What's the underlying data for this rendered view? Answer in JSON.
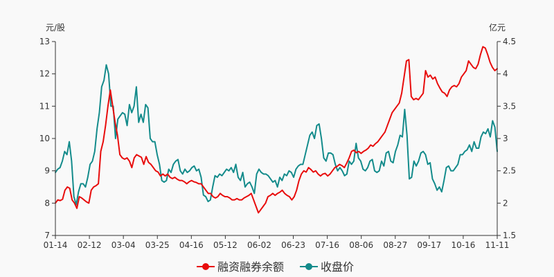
{
  "chart_data": {
    "type": "line",
    "left_unit": "元/股",
    "right_unit": "亿元",
    "x_tick_labels": [
      "01-14",
      "02-12",
      "03-04",
      "03-25",
      "04-16",
      "05-12",
      "06-02",
      "06-23",
      "07-16",
      "08-06",
      "08-27",
      "09-17",
      "10-16",
      "11-11"
    ],
    "y_left": {
      "min": 7,
      "max": 13,
      "ticks": [
        "7",
        "8",
        "9",
        "10",
        "11",
        "12",
        "13"
      ]
    },
    "y_right": {
      "min": 1.5,
      "max": 4.5,
      "ticks": [
        "1.5",
        "2",
        "2.5",
        "3",
        "3.5",
        "4",
        "4.5"
      ]
    },
    "grid": false,
    "legend_position": "bottom-center",
    "series": [
      {
        "name": "融资融券余额",
        "axis": "right",
        "color": "#e80c0c",
        "values": [
          2.0,
          2.05,
          2.04,
          2.06,
          2.2,
          2.25,
          2.23,
          2.05,
          2.0,
          1.92,
          2.1,
          2.08,
          2.05,
          2.02,
          2.0,
          2.2,
          2.25,
          2.27,
          2.3,
          2.8,
          2.95,
          3.2,
          3.5,
          3.75,
          3.5,
          3.25,
          3.05,
          2.75,
          2.7,
          2.68,
          2.7,
          2.65,
          2.55,
          2.7,
          2.75,
          2.73,
          2.71,
          2.6,
          2.72,
          2.63,
          2.6,
          2.55,
          2.5,
          2.48,
          2.42,
          2.45,
          2.42,
          2.45,
          2.4,
          2.38,
          2.4,
          2.37,
          2.35,
          2.35,
          2.33,
          2.3,
          2.33,
          2.35,
          2.33,
          2.32,
          2.3,
          2.3,
          2.25,
          2.2,
          2.15,
          2.15,
          2.1,
          2.08,
          2.1,
          2.15,
          2.12,
          2.1,
          2.1,
          2.08,
          2.05,
          2.05,
          2.07,
          2.05,
          2.05,
          2.08,
          2.1,
          2.12,
          2.15,
          2.05,
          1.95,
          1.85,
          1.9,
          1.95,
          2.0,
          2.1,
          2.12,
          2.15,
          2.12,
          2.15,
          2.17,
          2.2,
          2.15,
          2.12,
          2.1,
          2.05,
          2.1,
          2.2,
          2.35,
          2.45,
          2.5,
          2.48,
          2.55,
          2.52,
          2.48,
          2.5,
          2.45,
          2.42,
          2.45,
          2.46,
          2.42,
          2.45,
          2.5,
          2.55,
          2.57,
          2.6,
          2.58,
          2.55,
          2.62,
          2.7,
          2.8,
          2.82,
          2.78,
          2.8,
          2.77,
          2.8,
          2.82,
          2.85,
          2.9,
          2.88,
          2.92,
          2.95,
          3.0,
          3.05,
          3.1,
          3.2,
          3.3,
          3.4,
          3.45,
          3.5,
          3.55,
          3.7,
          3.95,
          4.2,
          4.22,
          3.65,
          3.6,
          3.62,
          3.6,
          3.65,
          3.7,
          4.05,
          3.95,
          3.98,
          3.92,
          3.95,
          3.85,
          3.78,
          3.72,
          3.7,
          3.65,
          3.75,
          3.8,
          3.82,
          3.8,
          3.85,
          3.95,
          4.0,
          4.05,
          4.2,
          4.15,
          4.1,
          4.08,
          4.15,
          4.3,
          4.42,
          4.4,
          4.3,
          4.18,
          4.1,
          4.05,
          4.08
        ]
      },
      {
        "name": "收盘价",
        "axis": "left",
        "color": "#138b8b",
        "values": [
          8.95,
          9.05,
          9.1,
          9.3,
          9.6,
          9.5,
          9.9,
          9.3,
          8.2,
          7.95,
          8.35,
          8.6,
          8.6,
          8.5,
          8.8,
          9.2,
          9.3,
          9.6,
          10.3,
          10.8,
          11.6,
          11.8,
          12.28,
          12.0,
          11.0,
          11.0,
          10.0,
          10.6,
          10.7,
          10.8,
          10.75,
          10.4,
          11.05,
          10.8,
          11.0,
          11.6,
          10.5,
          10.75,
          10.5,
          11.05,
          10.95,
          10.0,
          9.9,
          9.9,
          9.5,
          9.2,
          8.7,
          8.65,
          8.7,
          9.05,
          8.95,
          9.2,
          9.3,
          9.35,
          9.0,
          8.9,
          9.05,
          8.95,
          9.0,
          9.1,
          9.15,
          9.0,
          9.05,
          8.8,
          8.25,
          8.2,
          8.05,
          8.1,
          8.5,
          8.85,
          8.8,
          8.9,
          8.85,
          8.95,
          9.05,
          9.0,
          9.1,
          8.95,
          9.2,
          8.8,
          8.7,
          8.95,
          8.5,
          8.6,
          8.65,
          8.5,
          8.3,
          8.9,
          9.05,
          8.95,
          8.9,
          8.9,
          8.85,
          8.75,
          8.65,
          8.7,
          8.5,
          8.8,
          8.7,
          8.9,
          8.85,
          9.0,
          8.95,
          8.8,
          9.05,
          9.15,
          9.2,
          9.2,
          9.5,
          9.8,
          10.1,
          10.2,
          10.0,
          10.4,
          10.45,
          10.0,
          9.4,
          9.3,
          9.55,
          9.55,
          9.5,
          9.2,
          9.0,
          9.1,
          9.0,
          8.85,
          8.9,
          9.3,
          9.2,
          9.3,
          9.85,
          9.4,
          9.3,
          9.05,
          9.0,
          9.1,
          9.3,
          9.35,
          9.0,
          8.95,
          9.0,
          9.3,
          9.15,
          9.55,
          9.6,
          9.3,
          9.25,
          9.6,
          9.8,
          10.1,
          10.05,
          10.9,
          10.1,
          8.75,
          8.8,
          9.3,
          9.15,
          9.3,
          9.55,
          9.6,
          9.5,
          9.2,
          9.25,
          8.75,
          8.6,
          8.4,
          8.5,
          8.35,
          8.7,
          9.1,
          9.15,
          9.0,
          9.0,
          9.1,
          9.2,
          9.5,
          9.5,
          9.6,
          9.65,
          9.8,
          9.6,
          9.9,
          9.7,
          9.7,
          10.05,
          10.2,
          10.15,
          10.3,
          10.05,
          10.55,
          10.35,
          9.6
        ]
      }
    ]
  }
}
